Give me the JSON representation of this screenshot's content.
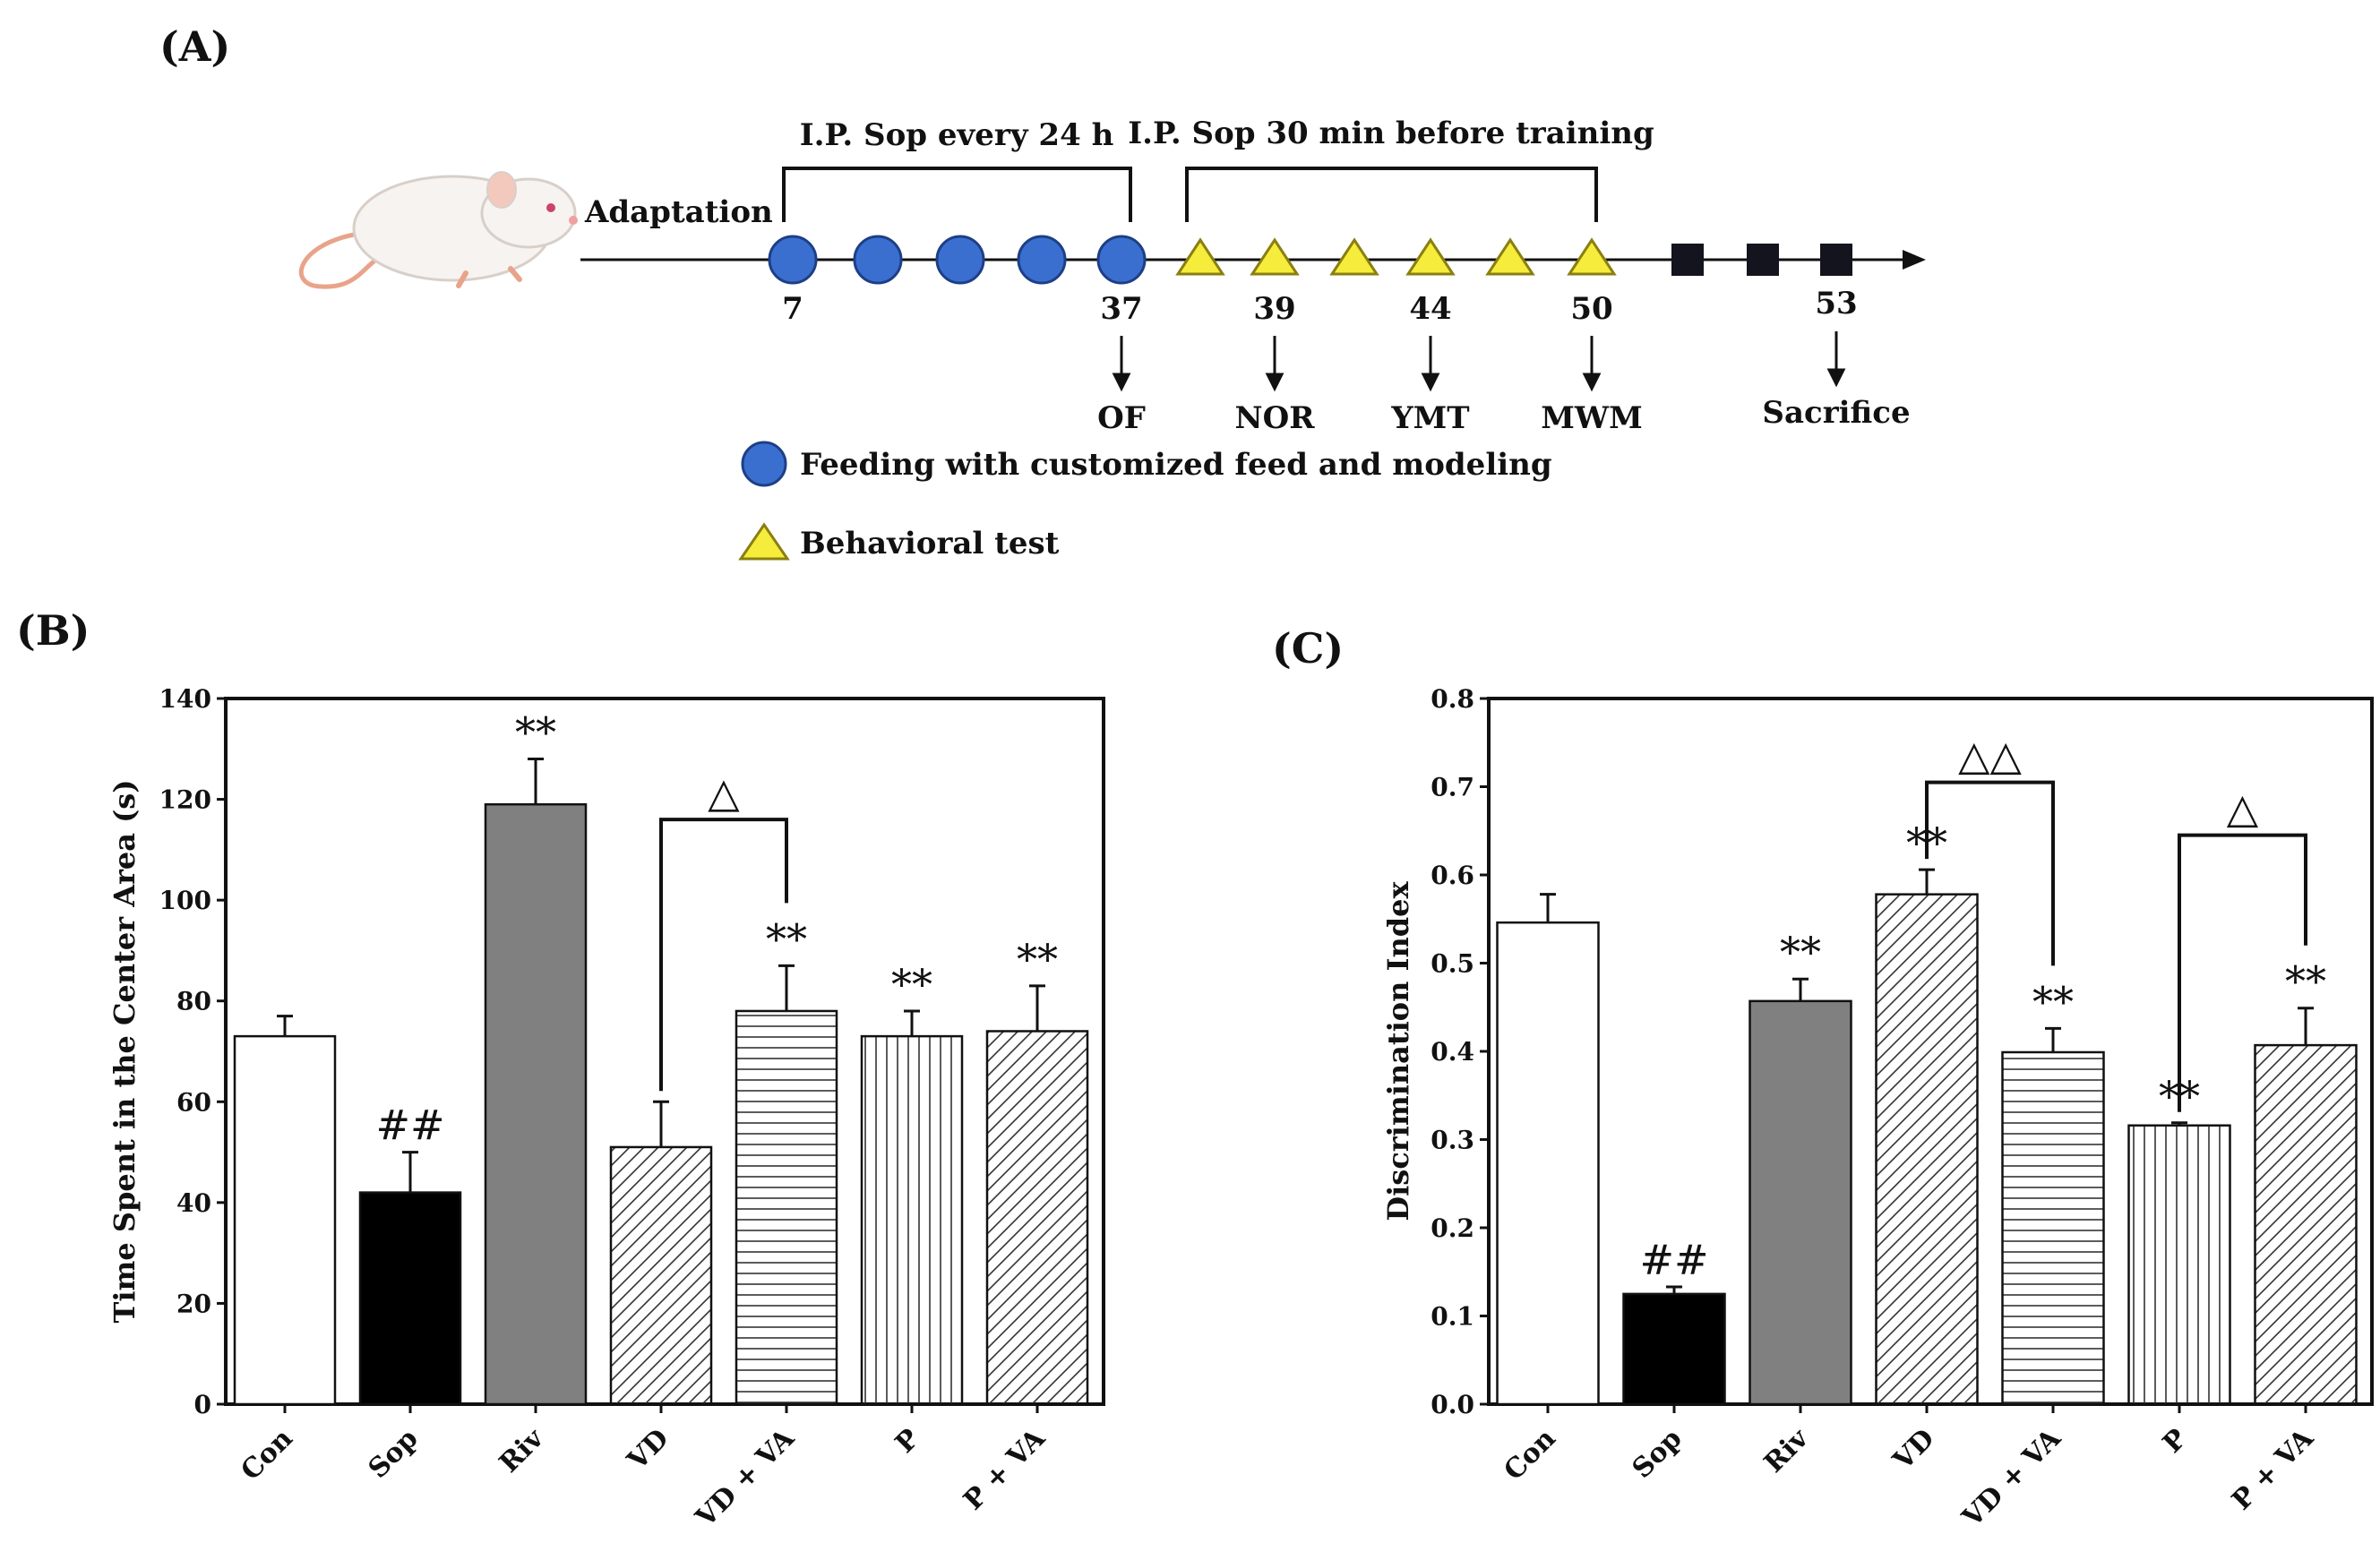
{
  "panel_labels": {
    "a": "(A)",
    "b": "(B)",
    "c": "(C)"
  },
  "timeline": {
    "adaptation_label": "Adaptation",
    "bracket1_label": "I.P. Sop every 24 h",
    "bracket2_label": "I.P. Sop 30 min before training",
    "day_labels": [
      "7",
      "37",
      "39",
      "44",
      "50",
      "53"
    ],
    "test_labels": [
      "OF",
      "NOR",
      "YMT",
      "MWM",
      "Sacrifice"
    ],
    "legend_feeding": "Feeding with customized feed and modeling",
    "legend_behavior": "Behavioral test",
    "colors": {
      "feeding": "#3a6fd0",
      "behavior": "#f6ec3c",
      "sacrifice": "#14141f",
      "mouse_body": "#f7f3f0",
      "mouse_tail": "#e8a48a"
    }
  },
  "chart_data": [
    {
      "type": "bar",
      "ylabel": "Time Spent in the Center Area (s)",
      "categories": [
        "Con",
        "Sop",
        "Riv",
        "VD",
        "VD + VA",
        "P",
        "P + VA"
      ],
      "values": [
        73,
        42,
        119,
        51,
        78,
        73,
        74
      ],
      "errors": [
        4,
        8,
        9,
        9,
        9,
        5,
        9
      ],
      "marks": [
        "",
        "##",
        "**",
        "",
        "**",
        "**",
        "**"
      ],
      "fills": [
        "white",
        "black",
        "gray",
        "diag",
        "horiz",
        "vert",
        "diag"
      ],
      "ylim": [
        0,
        140
      ],
      "yticks": [
        0,
        20,
        40,
        60,
        80,
        100,
        120,
        140
      ],
      "ytick_labels": [
        "0",
        "20",
        "40",
        "60",
        "80",
        "100",
        "120",
        "140"
      ],
      "brackets": [
        {
          "from": 3,
          "to": 4,
          "y": 116,
          "label": "△"
        }
      ]
    },
    {
      "type": "bar",
      "ylabel": "Discrimination Index",
      "categories": [
        "Con",
        "Sop",
        "Riv",
        "VD",
        "VD + VA",
        "P",
        "P + VA"
      ],
      "values": [
        0.546,
        0.125,
        0.457,
        0.578,
        0.399,
        0.316,
        0.407
      ],
      "errors": [
        0.032,
        0.008,
        0.025,
        0.028,
        0.027,
        0.003,
        0.042
      ],
      "marks": [
        "",
        "##",
        "**",
        "**",
        "**",
        "**",
        "**"
      ],
      "fills": [
        "white",
        "black",
        "gray",
        "diag",
        "horiz",
        "vert",
        "diag"
      ],
      "ylim": [
        0,
        0.8
      ],
      "yticks": [
        0,
        0.1,
        0.2,
        0.3,
        0.4,
        0.5,
        0.6,
        0.7,
        0.8
      ],
      "ytick_labels": [
        "0.0",
        "0.1",
        "0.2",
        "0.3",
        "0.4",
        "0.5",
        "0.6",
        "0.7",
        "0.8"
      ],
      "brackets": [
        {
          "from": 3,
          "to": 4,
          "y": 0.705,
          "label": "△△"
        },
        {
          "from": 5,
          "to": 6,
          "y": 0.645,
          "label": "△"
        }
      ]
    }
  ]
}
